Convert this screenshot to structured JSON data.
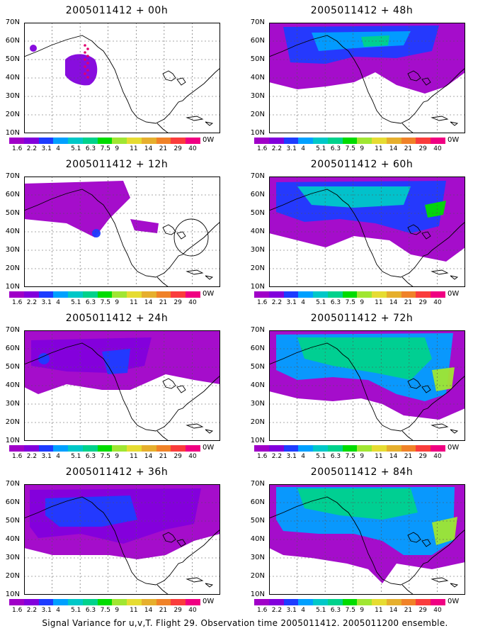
{
  "panels": [
    {
      "title": "2005011412 + 00h",
      "lead": "00h"
    },
    {
      "title": "2005011412 + 48h",
      "lead": "48h"
    },
    {
      "title": "2005011412 + 12h",
      "lead": "12h"
    },
    {
      "title": "2005011412 + 60h",
      "lead": "60h"
    },
    {
      "title": "2005011412 + 24h",
      "lead": "24h"
    },
    {
      "title": "2005011412 + 72h",
      "lead": "72h"
    },
    {
      "title": "2005011412 + 36h",
      "lead": "36h"
    },
    {
      "title": "2005011412 + 84h",
      "lead": "84h"
    }
  ],
  "lat_labels": [
    "70N",
    "60N",
    "50N",
    "40N",
    "30N",
    "20N",
    "10N"
  ],
  "lon_edge_label": "0W",
  "colorbar": {
    "labels": [
      "1.6",
      "2.2",
      "3.1",
      "4",
      "5.1",
      "6.3",
      "7.5",
      "9",
      "11",
      "14",
      "21",
      "29",
      "40"
    ],
    "colors": [
      "#a000c8",
      "#8200dc",
      "#1e3cff",
      "#00a0ff",
      "#00c8c8",
      "#00d28c",
      "#00dc00",
      "#a0e632",
      "#e6dc32",
      "#e6af2d",
      "#f08228",
      "#fa3c3c",
      "#f00082"
    ]
  },
  "footer": "Signal Variance for u,v,T. Flight 29. Observation time 2005011412. 2005011200 ensemble."
}
